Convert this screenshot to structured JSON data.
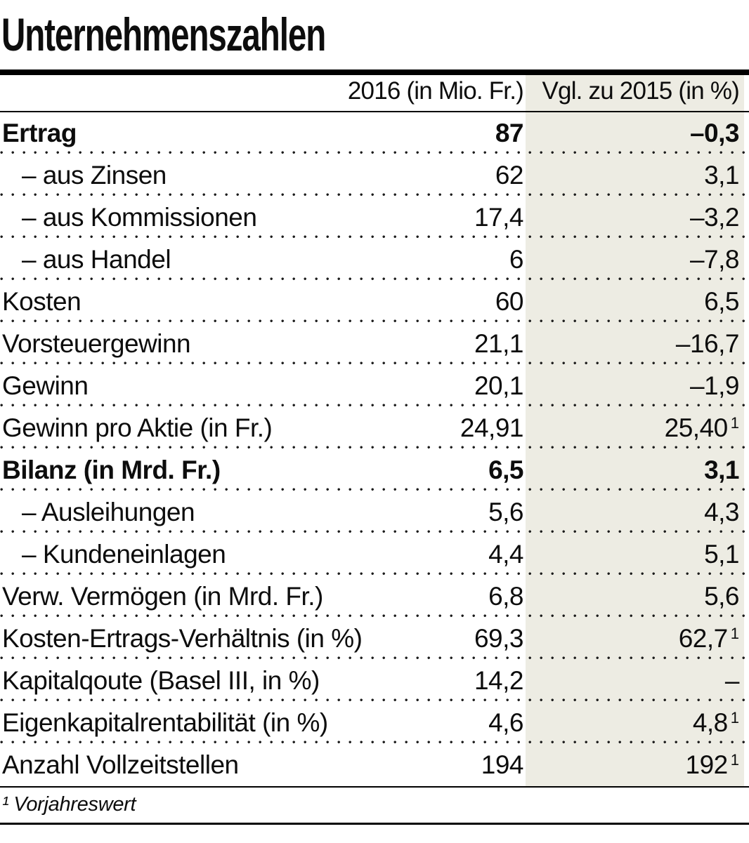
{
  "title": "Unternehmenszahlen",
  "table": {
    "col_headers": [
      "2016 (in Mio. Fr.)",
      "Vgl. zu 2015 (in %)"
    ],
    "rows": [
      {
        "label": "Ertrag",
        "v2016": "87",
        "vgl": "–0,3",
        "bold": true,
        "sub": false
      },
      {
        "label": "– aus Zinsen",
        "v2016": "62",
        "vgl": "3,1",
        "bold": false,
        "sub": true
      },
      {
        "label": "– aus Kommissionen",
        "v2016": "17,4",
        "vgl": "–3,2",
        "bold": false,
        "sub": true
      },
      {
        "label": "– aus Handel",
        "v2016": "6",
        "vgl": "–7,8",
        "bold": false,
        "sub": true
      },
      {
        "label": "Kosten",
        "v2016": "60",
        "vgl": "6,5",
        "bold": false,
        "sub": false
      },
      {
        "label": "Vorsteuergewinn",
        "v2016": "21,1",
        "vgl": "–16,7",
        "bold": false,
        "sub": false
      },
      {
        "label": "Gewinn",
        "v2016": "20,1",
        "vgl": "–1,9",
        "bold": false,
        "sub": false
      },
      {
        "label": "Gewinn pro Aktie (in Fr.)",
        "v2016": "24,91",
        "vgl": "25,40",
        "vgl_sup": "1",
        "bold": false,
        "sub": false
      },
      {
        "label": "Bilanz (in Mrd. Fr.)",
        "v2016": "6,5",
        "vgl": "3,1",
        "bold": true,
        "sub": false
      },
      {
        "label": "– Ausleihungen",
        "v2016": "5,6",
        "vgl": "4,3",
        "bold": false,
        "sub": true
      },
      {
        "label": "– Kundeneinlagen",
        "v2016": "4,4",
        "vgl": "5,1",
        "bold": false,
        "sub": true
      },
      {
        "label": "Verw. Vermögen (in Mrd. Fr.)",
        "v2016": "6,8",
        "vgl": "5,6",
        "bold": false,
        "sub": false
      },
      {
        "label": "Kosten-Ertrags-Verhältnis (in %)",
        "v2016": "69,3",
        "vgl": "62,7",
        "vgl_sup": "1",
        "bold": false,
        "sub": false
      },
      {
        "label": "Kapitalqoute (Basel III, in %)",
        "v2016": "14,2",
        "vgl": "–",
        "bold": false,
        "sub": false
      },
      {
        "label": "Eigenkapitalrentabilität (in %)",
        "v2016": "4,6",
        "vgl": "4,8",
        "vgl_sup": "1",
        "bold": false,
        "sub": false
      },
      {
        "label": "Anzahl Vollzeitstellen",
        "v2016": "194",
        "vgl": "192",
        "vgl_sup": "1",
        "bold": false,
        "sub": false
      }
    ]
  },
  "footnote": {
    "marker": "¹",
    "text": "Vorjahreswert"
  },
  "colors": {
    "highlight_column_bg": "#edece3",
    "rule": "#000000",
    "text": "#0d0d0d"
  }
}
